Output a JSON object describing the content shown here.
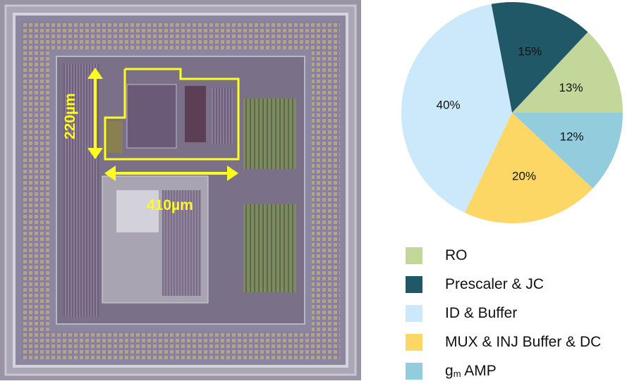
{
  "micrograph": {
    "height_label": "220µm",
    "width_label": "410µm",
    "annotation_color": "#ffff1e"
  },
  "chart_data": {
    "type": "pie",
    "start_angle": "east, counterclockwise",
    "legend_position": "bottom",
    "slices": [
      {
        "name": "RO",
        "value": 13,
        "label": "13%",
        "color": "#c4d79b"
      },
      {
        "name": "Prescaler & JC",
        "value": 15,
        "label": "15%",
        "color": "#215868"
      },
      {
        "name": "ID & Buffer",
        "value": 40,
        "label": "40%",
        "color": "#cce8fb"
      },
      {
        "name": "MUX & INJ Buffer & DC",
        "value": 20,
        "label": "20%",
        "color": "#fdd766"
      },
      {
        "name": "gm AMP",
        "value": 12,
        "label": "12%",
        "color": "#93cddd"
      }
    ]
  },
  "legend": {
    "gm_main": "g",
    "gm_sub": "m",
    "gm_rest": " AMP"
  }
}
